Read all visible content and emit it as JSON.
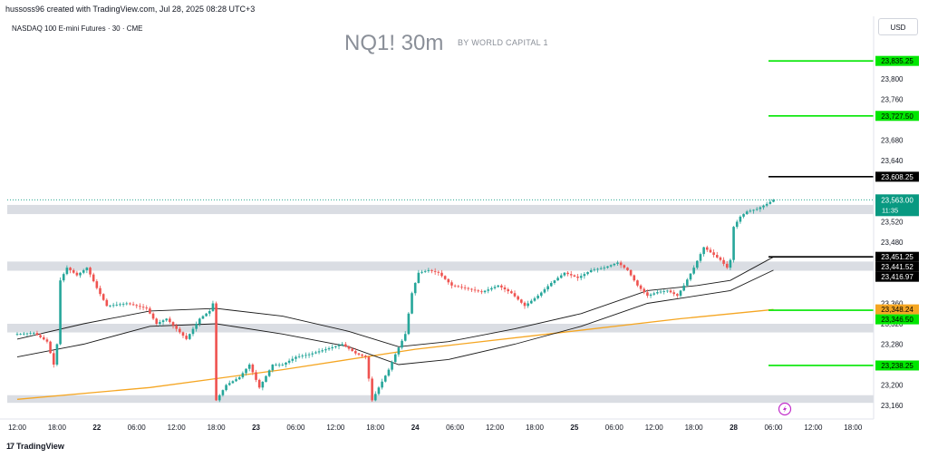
{
  "header": {
    "attribution": "hussoss96 created with TradingView.com, Jul 28, 2025 08:28 UTC+3",
    "symbol": "NASDAQ 100 E-mini Futures · 30 · CME",
    "watermark_title": "NQ1! 30m",
    "watermark_subtitle": "BY WORLD CAPITAL 1",
    "currency": "USD"
  },
  "footer": {
    "brand": "TradingView",
    "logo": "17"
  },
  "colors": {
    "bull": "#26a69a",
    "bear": "#ef5350",
    "ma_yellow": "#f5a623",
    "ma_black": "#1a1a1a",
    "green_level": "#00e600",
    "zone": "#dadde3",
    "teal_label": "#089981",
    "orange_label": "#f5a623"
  },
  "chart_data": {
    "type": "candlestick",
    "title": "NQ1! 30m",
    "ylim": [
      23135,
      23875
    ],
    "yticks": [
      23160,
      23200,
      23280,
      23320,
      23360,
      23480,
      23520,
      23640,
      23680,
      23760,
      23800
    ],
    "xticks": [
      {
        "t": 0,
        "label": "12:00"
      },
      {
        "t": 12,
        "label": "18:00"
      },
      {
        "t": 24,
        "label": "22"
      },
      {
        "t": 36,
        "label": "06:00"
      },
      {
        "t": 48,
        "label": "12:00"
      },
      {
        "t": 60,
        "label": "18:00"
      },
      {
        "t": 72,
        "label": "23"
      },
      {
        "t": 84,
        "label": "06:00"
      },
      {
        "t": 96,
        "label": "12:00"
      },
      {
        "t": 108,
        "label": "18:00"
      },
      {
        "t": 120,
        "label": "24"
      },
      {
        "t": 132,
        "label": "06:00"
      },
      {
        "t": 144,
        "label": "12:00"
      },
      {
        "t": 156,
        "label": "18:00"
      },
      {
        "t": 168,
        "label": "25"
      },
      {
        "t": 180,
        "label": "06:00"
      },
      {
        "t": 192,
        "label": "12:00"
      },
      {
        "t": 204,
        "label": "18:00"
      },
      {
        "t": 216,
        "label": "28"
      },
      {
        "t": 228,
        "label": "06:00"
      },
      {
        "t": 240,
        "label": "12:00"
      },
      {
        "t": 252,
        "label": "18:00"
      }
    ],
    "candle_points": [
      [
        0,
        23300
      ],
      [
        5,
        23302
      ],
      [
        9,
        23285
      ],
      [
        11,
        23240
      ],
      [
        12,
        23280
      ],
      [
        13,
        23405
      ],
      [
        15,
        23430
      ],
      [
        18,
        23415
      ],
      [
        21,
        23430
      ],
      [
        24,
        23390
      ],
      [
        27,
        23355
      ],
      [
        33,
        23360
      ],
      [
        39,
        23350
      ],
      [
        42,
        23320
      ],
      [
        45,
        23330
      ],
      [
        48,
        23310
      ],
      [
        51,
        23290
      ],
      [
        55,
        23330
      ],
      [
        58,
        23345
      ],
      [
        59,
        23360
      ],
      [
        60,
        23170
      ],
      [
        63,
        23200
      ],
      [
        67,
        23215
      ],
      [
        70,
        23240
      ],
      [
        73,
        23195
      ],
      [
        77,
        23240
      ],
      [
        80,
        23240
      ],
      [
        84,
        23255
      ],
      [
        88,
        23260
      ],
      [
        93,
        23270
      ],
      [
        98,
        23280
      ],
      [
        102,
        23262
      ],
      [
        105,
        23255
      ],
      [
        107,
        23170
      ],
      [
        109,
        23195
      ],
      [
        112,
        23230
      ],
      [
        114,
        23260
      ],
      [
        117,
        23300
      ],
      [
        119,
        23380
      ],
      [
        121,
        23420
      ],
      [
        124,
        23425
      ],
      [
        127,
        23420
      ],
      [
        131,
        23395
      ],
      [
        135,
        23390
      ],
      [
        140,
        23382
      ],
      [
        145,
        23395
      ],
      [
        149,
        23380
      ],
      [
        153,
        23355
      ],
      [
        157,
        23375
      ],
      [
        161,
        23400
      ],
      [
        165,
        23420
      ],
      [
        169,
        23410
      ],
      [
        173,
        23425
      ],
      [
        177,
        23430
      ],
      [
        181,
        23440
      ],
      [
        184,
        23425
      ],
      [
        187,
        23395
      ],
      [
        190,
        23375
      ],
      [
        193,
        23382
      ],
      [
        196,
        23385
      ],
      [
        199,
        23375
      ],
      [
        201,
        23395
      ],
      [
        204,
        23430
      ],
      [
        207,
        23470
      ],
      [
        210,
        23455
      ],
      [
        212,
        23445
      ],
      [
        214,
        23430
      ],
      [
        215,
        23445
      ],
      [
        216,
        23510
      ],
      [
        218,
        23530
      ],
      [
        220,
        23540
      ],
      [
        223,
        23545
      ],
      [
        226,
        23555
      ],
      [
        228,
        23563
      ]
    ],
    "overlays": [
      {
        "color": "#f5a623",
        "width": 1.3,
        "points": [
          [
            0,
            23172
          ],
          [
            40,
            23195
          ],
          [
            80,
            23230
          ],
          [
            120,
            23270
          ],
          [
            160,
            23300
          ],
          [
            200,
            23330
          ],
          [
            228,
            23348
          ]
        ]
      },
      {
        "color": "#1a1a1a",
        "width": 0.9,
        "points": [
          [
            0,
            23290
          ],
          [
            20,
            23320
          ],
          [
            40,
            23345
          ],
          [
            60,
            23350
          ],
          [
            80,
            23335
          ],
          [
            100,
            23305
          ],
          [
            115,
            23275
          ],
          [
            130,
            23285
          ],
          [
            150,
            23310
          ],
          [
            170,
            23340
          ],
          [
            190,
            23385
          ],
          [
            205,
            23395
          ],
          [
            215,
            23405
          ],
          [
            228,
            23451
          ]
        ]
      },
      {
        "color": "#1a1a1a",
        "width": 0.9,
        "points": [
          [
            0,
            23255
          ],
          [
            20,
            23280
          ],
          [
            40,
            23315
          ],
          [
            60,
            23320
          ],
          [
            80,
            23300
          ],
          [
            100,
            23275
          ],
          [
            115,
            23240
          ],
          [
            130,
            23250
          ],
          [
            150,
            23280
          ],
          [
            170,
            23315
          ],
          [
            190,
            23360
          ],
          [
            205,
            23375
          ],
          [
            215,
            23385
          ],
          [
            228,
            23425
          ]
        ]
      }
    ],
    "zones": [
      {
        "from": 23535,
        "to": 23553
      },
      {
        "from": 23424,
        "to": 23442
      },
      {
        "from": 23303,
        "to": 23320
      },
      {
        "from": 23165,
        "to": 23180
      }
    ],
    "levels": [
      {
        "price": 23835.25,
        "label": "23,835.25",
        "style": "green",
        "line": true
      },
      {
        "price": 23727.5,
        "label": "23,727.50",
        "style": "green",
        "line": true
      },
      {
        "price": 23608.25,
        "label": "23,608.25",
        "style": "black",
        "line": true
      },
      {
        "price": 23451.25,
        "label": "23,451.25",
        "style": "black",
        "line": true
      },
      {
        "price": 23441.52,
        "label": "23,441.52",
        "style": "black",
        "line": false
      },
      {
        "price": 23416.97,
        "label": "23,416.97",
        "style": "black",
        "line": false
      },
      {
        "price": 23348.24,
        "label": "23,348.24",
        "style": "orange",
        "line": false
      },
      {
        "price": 23346.5,
        "label": "23,346.50",
        "style": "green",
        "line": true
      },
      {
        "price": 23238.25,
        "label": "23,238.25",
        "style": "green",
        "line": true
      }
    ],
    "last_price": {
      "price": 23563.0,
      "label": "23,563.00",
      "countdown": "11:35"
    }
  }
}
